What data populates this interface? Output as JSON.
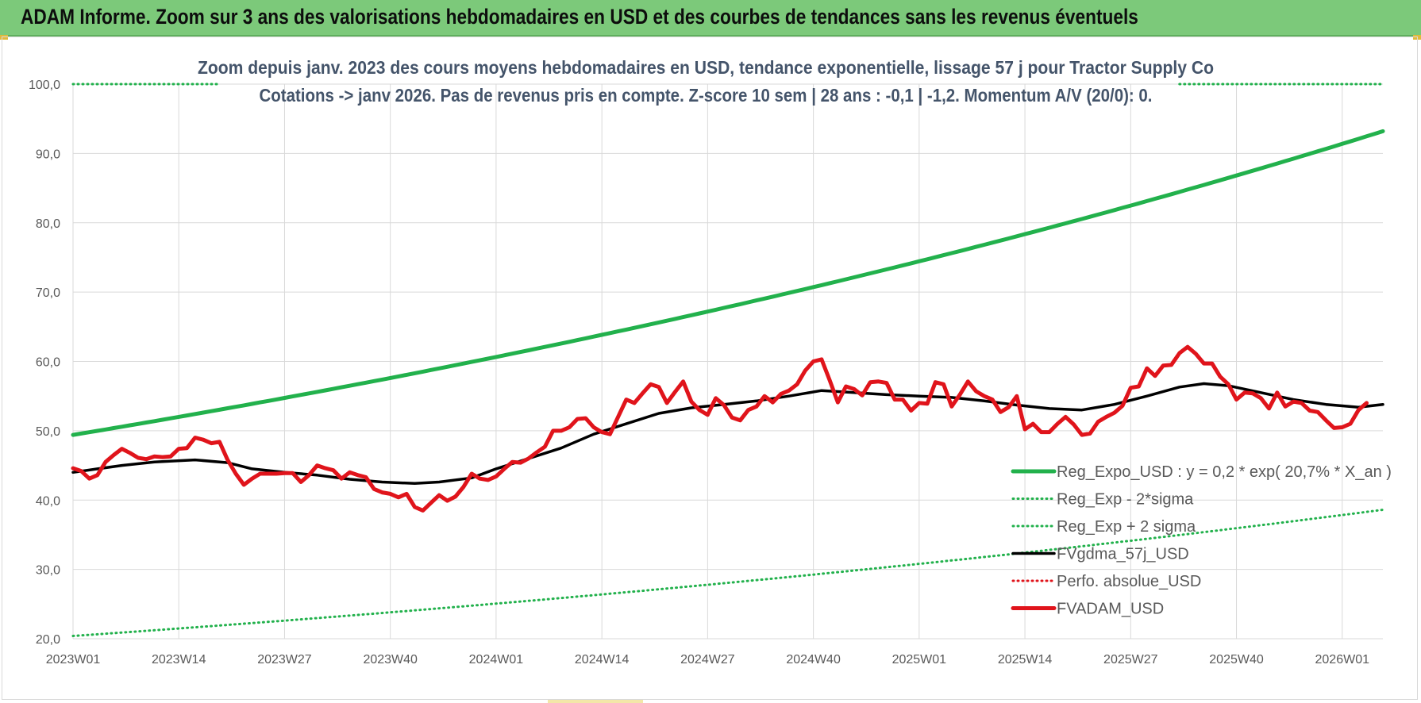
{
  "header": {
    "title": "ADAM Informe. Zoom sur 3 ans des valorisations hebdomadaires en USD et des courbes de tendances sans les revenus éventuels"
  },
  "chart_data": {
    "type": "line",
    "title": "",
    "subtitle_lines": [
      "Zoom depuis janv. 2023 des cours moyens hebdomadaires en USD, tendance exponentielle, lissage 57 j pour Tractor Supply Co",
      "Cotations -> janv 2026. Pas de revenus pris en compte. Z-score 10 sem | 28 ans : -0,1 | -1,2. Momentum A/V (20/0): 0."
    ],
    "xlabel": "",
    "ylabel": "",
    "ylim": [
      20,
      100
    ],
    "yticks": [
      "20,0",
      "30,0",
      "40,0",
      "50,0",
      "60,0",
      "70,0",
      "80,0",
      "90,0",
      "100,0"
    ],
    "xlim": [
      0,
      161
    ],
    "xticks": [
      {
        "x": 0,
        "label": "2023W01"
      },
      {
        "x": 13,
        "label": "2023W14"
      },
      {
        "x": 26,
        "label": "2023W27"
      },
      {
        "x": 39,
        "label": "2023W40"
      },
      {
        "x": 52,
        "label": "2024W01"
      },
      {
        "x": 65,
        "label": "2024W14"
      },
      {
        "x": 78,
        "label": "2024W27"
      },
      {
        "x": 91,
        "label": "2024W40"
      },
      {
        "x": 104,
        "label": "2025W01"
      },
      {
        "x": 117,
        "label": "2025W14"
      },
      {
        "x": 130,
        "label": "2025W27"
      },
      {
        "x": 143,
        "label": "2025W40"
      },
      {
        "x": 156,
        "label": "2026W01"
      }
    ],
    "grid": true,
    "legend_position": "bottom-right",
    "series": [
      {
        "name": "Reg_Expo_USD : y = 0,2 * exp( 20,7% *  X_an )",
        "color": "#22b14c",
        "style": "solid-thick",
        "points": [
          [
            0,
            49.4
          ],
          [
            161,
            93.2
          ]
        ],
        "curve": "exp"
      },
      {
        "name": "Reg_Exp - 2*sigma",
        "color": "#22b14c",
        "style": "dotted",
        "points": [
          [
            0,
            20.4
          ],
          [
            161,
            38.6
          ]
        ],
        "curve": "exp"
      },
      {
        "name": "Reg_Exp + 2 sigma",
        "color": "#22b14c",
        "style": "dotted",
        "points": [
          [
            0,
            100.0
          ],
          [
            18,
            100.0
          ]
        ],
        "points_right": [
          [
            136,
            100.0
          ],
          [
            161,
            100.0
          ]
        ],
        "curve": "linear"
      },
      {
        "name": "FVgdma_57j_USD",
        "color": "#000000",
        "style": "solid",
        "points": [
          [
            0,
            44.0
          ],
          [
            3,
            44.5
          ],
          [
            6,
            45.0
          ],
          [
            10,
            45.5
          ],
          [
            15,
            45.8
          ],
          [
            19,
            45.4
          ],
          [
            22,
            44.5
          ],
          [
            26,
            44.0
          ],
          [
            30,
            43.6
          ],
          [
            34,
            43.0
          ],
          [
            38,
            42.6
          ],
          [
            42,
            42.4
          ],
          [
            45,
            42.6
          ],
          [
            49,
            43.2
          ],
          [
            52,
            44.5
          ],
          [
            56,
            46.0
          ],
          [
            60,
            47.5
          ],
          [
            64,
            49.5
          ],
          [
            68,
            51.0
          ],
          [
            72,
            52.5
          ],
          [
            76,
            53.3
          ],
          [
            80,
            53.8
          ],
          [
            84,
            54.3
          ],
          [
            88,
            55.0
          ],
          [
            92,
            55.8
          ],
          [
            96,
            55.5
          ],
          [
            100,
            55.2
          ],
          [
            104,
            55.0
          ],
          [
            108,
            54.8
          ],
          [
            112,
            54.3
          ],
          [
            116,
            53.7
          ],
          [
            120,
            53.2
          ],
          [
            124,
            53.0
          ],
          [
            128,
            53.8
          ],
          [
            132,
            55.0
          ],
          [
            136,
            56.3
          ],
          [
            139,
            56.8
          ],
          [
            142,
            56.5
          ],
          [
            146,
            55.5
          ],
          [
            150,
            54.5
          ],
          [
            154,
            53.8
          ],
          [
            158,
            53.4
          ],
          [
            161,
            53.8
          ]
        ]
      },
      {
        "name": "Perfo. absolue_USD",
        "color": "#e0141b",
        "style": "dotted",
        "points": []
      },
      {
        "name": "FVADAM_USD",
        "color": "#e0141b",
        "style": "solid-thick",
        "points": [
          [
            0,
            44.6
          ],
          [
            1,
            44.2
          ],
          [
            2,
            43.1
          ],
          [
            3,
            43.6
          ],
          [
            4,
            45.5
          ],
          [
            5,
            46.5
          ],
          [
            6,
            47.4
          ],
          [
            7,
            46.8
          ],
          [
            8,
            46.1
          ],
          [
            9,
            45.9
          ],
          [
            10,
            46.3
          ],
          [
            11,
            46.2
          ],
          [
            12,
            46.3
          ],
          [
            13,
            47.4
          ],
          [
            14,
            47.5
          ],
          [
            15,
            49.0
          ],
          [
            16,
            48.7
          ],
          [
            17,
            48.2
          ],
          [
            18,
            48.4
          ],
          [
            19,
            45.8
          ],
          [
            20,
            43.8
          ],
          [
            21,
            42.2
          ],
          [
            22,
            43.1
          ],
          [
            23,
            43.8
          ],
          [
            24,
            43.8
          ],
          [
            25,
            43.8
          ],
          [
            26,
            43.9
          ],
          [
            27,
            43.9
          ],
          [
            28,
            42.6
          ],
          [
            29,
            43.6
          ],
          [
            30,
            45.0
          ],
          [
            31,
            44.6
          ],
          [
            32,
            44.3
          ],
          [
            33,
            43.1
          ],
          [
            34,
            44.0
          ],
          [
            35,
            43.6
          ],
          [
            36,
            43.3
          ],
          [
            37,
            41.6
          ],
          [
            38,
            41.1
          ],
          [
            39,
            40.9
          ],
          [
            40,
            40.4
          ],
          [
            41,
            40.9
          ],
          [
            42,
            39.0
          ],
          [
            43,
            38.5
          ],
          [
            44,
            39.6
          ],
          [
            45,
            40.7
          ],
          [
            46,
            39.9
          ],
          [
            47,
            40.5
          ],
          [
            48,
            41.9
          ],
          [
            49,
            43.8
          ],
          [
            50,
            43.1
          ],
          [
            51,
            42.9
          ],
          [
            52,
            43.4
          ],
          [
            53,
            44.5
          ],
          [
            54,
            45.5
          ],
          [
            55,
            45.4
          ],
          [
            56,
            46.0
          ],
          [
            57,
            46.9
          ],
          [
            58,
            47.7
          ],
          [
            59,
            50.0
          ],
          [
            60,
            50.0
          ],
          [
            61,
            50.5
          ],
          [
            62,
            51.7
          ],
          [
            63,
            51.8
          ],
          [
            64,
            50.5
          ],
          [
            65,
            49.8
          ],
          [
            66,
            49.5
          ],
          [
            67,
            52.0
          ],
          [
            68,
            54.5
          ],
          [
            69,
            54.0
          ],
          [
            70,
            55.4
          ],
          [
            71,
            56.7
          ],
          [
            72,
            56.3
          ],
          [
            73,
            54.0
          ],
          [
            74,
            55.6
          ],
          [
            75,
            57.1
          ],
          [
            76,
            54.2
          ],
          [
            77,
            53.0
          ],
          [
            78,
            52.3
          ],
          [
            79,
            54.7
          ],
          [
            80,
            53.7
          ],
          [
            81,
            51.9
          ],
          [
            82,
            51.5
          ],
          [
            83,
            53.0
          ],
          [
            84,
            53.5
          ],
          [
            85,
            55.0
          ],
          [
            86,
            54.1
          ],
          [
            87,
            55.3
          ],
          [
            88,
            55.8
          ],
          [
            89,
            56.7
          ],
          [
            90,
            58.7
          ],
          [
            91,
            60.0
          ],
          [
            92,
            60.3
          ],
          [
            93,
            57.3
          ],
          [
            94,
            54.1
          ],
          [
            95,
            56.4
          ],
          [
            96,
            56.0
          ],
          [
            97,
            55.1
          ],
          [
            98,
            57.0
          ],
          [
            99,
            57.1
          ],
          [
            100,
            56.9
          ],
          [
            101,
            54.5
          ],
          [
            102,
            54.5
          ],
          [
            103,
            52.9
          ],
          [
            104,
            54.0
          ],
          [
            105,
            53.9
          ],
          [
            106,
            57.0
          ],
          [
            107,
            56.7
          ],
          [
            108,
            53.5
          ],
          [
            109,
            55.2
          ],
          [
            110,
            57.1
          ],
          [
            111,
            55.7
          ],
          [
            112,
            55.0
          ],
          [
            113,
            54.5
          ],
          [
            114,
            52.7
          ],
          [
            115,
            53.4
          ],
          [
            116,
            55.0
          ],
          [
            117,
            50.2
          ],
          [
            118,
            51.0
          ],
          [
            119,
            49.8
          ],
          [
            120,
            49.8
          ],
          [
            121,
            51.0
          ],
          [
            122,
            52.0
          ],
          [
            123,
            50.9
          ],
          [
            124,
            49.4
          ],
          [
            125,
            49.6
          ],
          [
            126,
            51.3
          ],
          [
            127,
            52.0
          ],
          [
            128,
            52.6
          ],
          [
            129,
            53.6
          ],
          [
            130,
            56.2
          ],
          [
            131,
            56.4
          ],
          [
            132,
            59.0
          ],
          [
            133,
            57.9
          ],
          [
            134,
            59.4
          ],
          [
            135,
            59.5
          ],
          [
            136,
            61.2
          ],
          [
            137,
            62.1
          ],
          [
            138,
            61.1
          ],
          [
            139,
            59.7
          ],
          [
            140,
            59.7
          ],
          [
            141,
            57.8
          ],
          [
            142,
            56.7
          ],
          [
            143,
            54.5
          ],
          [
            144,
            55.5
          ],
          [
            145,
            55.4
          ],
          [
            146,
            54.7
          ],
          [
            147,
            53.2
          ],
          [
            148,
            55.5
          ],
          [
            149,
            53.5
          ],
          [
            150,
            54.2
          ],
          [
            151,
            54.0
          ],
          [
            152,
            52.9
          ],
          [
            153,
            52.7
          ],
          [
            154,
            51.5
          ],
          [
            155,
            50.4
          ],
          [
            156,
            50.5
          ],
          [
            157,
            51.0
          ],
          [
            158,
            53.0
          ],
          [
            159,
            54.0
          ]
        ]
      }
    ]
  }
}
